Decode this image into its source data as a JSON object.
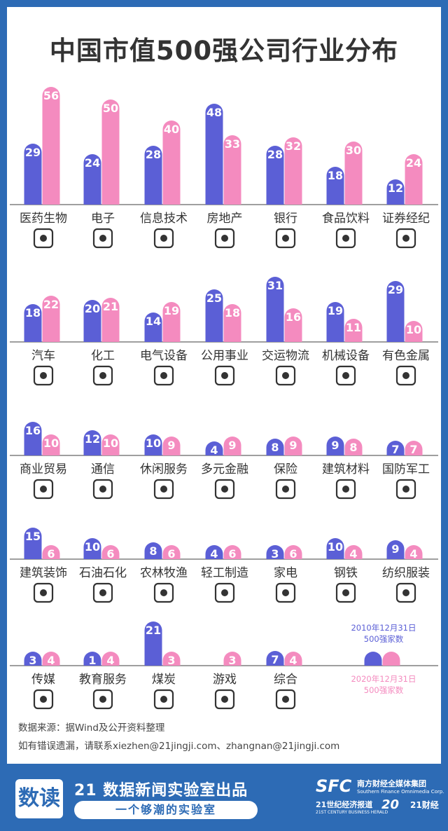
{
  "title": "中国市值500强公司行业分布",
  "colors": {
    "s2010": "#5b5fd6",
    "s2020": "#f48bbf",
    "background": "#2d6bb5",
    "card": "#ffffff",
    "text": "#333333"
  },
  "chart_data": {
    "type": "bar",
    "title": "中国市值500强公司行业分布",
    "series": [
      {
        "name": "2010年12月31日 500强家数",
        "color": "#5b5fd6"
      },
      {
        "name": "2020年12月31日 500强家数",
        "color": "#f48bbf"
      }
    ],
    "grid": false,
    "rows": [
      {
        "categories": [
          {
            "name": "医药生物",
            "icon": "pills-icon",
            "v2010": 29,
            "v2020": 56
          },
          {
            "name": "电子",
            "icon": "printer-icon",
            "v2010": 24,
            "v2020": 50
          },
          {
            "name": "信息技术",
            "icon": "computer-icon",
            "v2010": 28,
            "v2020": 40
          },
          {
            "name": "房地产",
            "icon": "house-icon",
            "v2010": 48,
            "v2020": 33
          },
          {
            "name": "银行",
            "icon": "atm-card-icon",
            "v2010": 28,
            "v2020": 32
          },
          {
            "name": "食品饮料",
            "icon": "burger-drink-icon",
            "v2010": 18,
            "v2020": 30
          },
          {
            "name": "证券经纪",
            "icon": "candlestick-icon",
            "v2010": 12,
            "v2020": 24
          }
        ]
      },
      {
        "categories": [
          {
            "name": "汽车",
            "icon": "car-icon",
            "v2010": 18,
            "v2020": 22
          },
          {
            "name": "化工",
            "icon": "flask-icon",
            "v2010": 20,
            "v2020": 21
          },
          {
            "name": "电气设备",
            "icon": "electric-panel-icon",
            "v2010": 14,
            "v2020": 19
          },
          {
            "name": "公用事业",
            "icon": "recycle-bin-icon",
            "v2010": 25,
            "v2020": 18
          },
          {
            "name": "交运物流",
            "icon": "globe-truck-icon",
            "v2010": 31,
            "v2020": 16
          },
          {
            "name": "机械设备",
            "icon": "gears-icon",
            "v2010": 19,
            "v2020": 11
          },
          {
            "name": "有色金属",
            "icon": "metal-ingots-icon",
            "v2010": 29,
            "v2020": 10
          }
        ]
      },
      {
        "categories": [
          {
            "name": "商业贸易",
            "icon": "storefront-icon",
            "v2010": 16,
            "v2020": 10
          },
          {
            "name": "通信",
            "icon": "wifi-icon",
            "v2010": 12,
            "v2020": 10
          },
          {
            "name": "休闲服务",
            "icon": "beach-umbrella-icon",
            "v2010": 10,
            "v2020": 9
          },
          {
            "name": "多元金融",
            "icon": "rising-chart-icon",
            "v2010": 4,
            "v2020": 9
          },
          {
            "name": "保险",
            "icon": "heart-hand-icon",
            "v2010": 8,
            "v2020": 9
          },
          {
            "name": "建筑材料",
            "icon": "logs-icon",
            "v2010": 9,
            "v2020": 8
          },
          {
            "name": "国防军工",
            "icon": "satellite-icon",
            "v2010": 7,
            "v2020": 7
          }
        ]
      },
      {
        "categories": [
          {
            "name": "建筑装饰",
            "icon": "shovel-icon",
            "v2010": 15,
            "v2020": 6
          },
          {
            "name": "石油石化",
            "icon": "oil-drop-icon",
            "v2010": 10,
            "v2020": 6
          },
          {
            "name": "农林牧渔",
            "icon": "leaves-icon",
            "v2010": 8,
            "v2020": 6
          },
          {
            "name": "轻工制造",
            "icon": "tissue-roll-icon",
            "v2010": 4,
            "v2020": 6
          },
          {
            "name": "家电",
            "icon": "washing-machine-icon",
            "v2010": 3,
            "v2020": 6
          },
          {
            "name": "钢铁",
            "icon": "steel-beam-icon",
            "v2010": 10,
            "v2020": 4
          },
          {
            "name": "纺织服装",
            "icon": "tshirt-icon",
            "v2010": 9,
            "v2020": 4
          }
        ]
      },
      {
        "categories": [
          {
            "name": "传媒",
            "icon": "film-camera-icon",
            "v2010": 3,
            "v2020": 4
          },
          {
            "name": "教育服务",
            "icon": "books-cap-icon",
            "v2010": 1,
            "v2020": 4
          },
          {
            "name": "煤炭",
            "icon": "fire-coal-icon",
            "v2010": 21,
            "v2020": 3
          },
          {
            "name": "游戏",
            "icon": "gamepad-icon",
            "v2010": null,
            "v2020": 3
          },
          {
            "name": "综合",
            "icon": "target-icon",
            "v2010": 7,
            "v2020": 4
          }
        ]
      }
    ],
    "legend": {
      "label_2010_line1": "2010年12月31日",
      "label_2010_line2": "500强家数",
      "label_2020_line1": "2020年12月31日",
      "label_2020_line2": "500强家数",
      "placement": "bottom-right"
    }
  },
  "notes": {
    "source": "数据来源：据Wind及公开资料整理",
    "contact": "如有错误遗漏，请联系xiezhen@21jingji.com、zhangnan@21jingji.com"
  },
  "footer": {
    "logo_text": "数读",
    "lab_name": "21 数据新闻实验室出品",
    "slogan": "一个够潮的实验室",
    "sfc": "SFC",
    "group_cn": "南方财经全媒体集团",
    "group_en": "Southern Finance Omnimedia Corp.",
    "herald": "21世纪经济报道",
    "herald_en": "21ST CENTURY BUSINESS HERALD",
    "anniversary": "20",
    "caijing": "21财经"
  }
}
